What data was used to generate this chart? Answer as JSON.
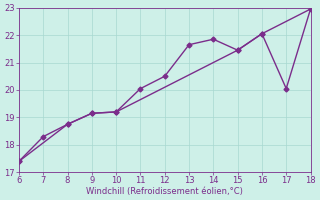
{
  "xlabel": "Windchill (Refroidissement éolien,°C)",
  "xlim": [
    6,
    18
  ],
  "ylim": [
    17,
    23
  ],
  "xticks": [
    6,
    7,
    8,
    9,
    10,
    11,
    12,
    13,
    14,
    15,
    16,
    17,
    18
  ],
  "yticks": [
    17,
    18,
    19,
    20,
    21,
    22,
    23
  ],
  "line1_x": [
    6,
    7,
    8,
    9,
    10,
    11,
    12,
    13,
    14,
    15,
    16,
    17,
    18
  ],
  "line1_y": [
    17.4,
    18.3,
    18.75,
    19.15,
    19.2,
    20.05,
    20.5,
    21.65,
    21.85,
    21.45,
    22.05,
    20.05,
    22.95
  ],
  "line2_x": [
    6,
    8,
    9,
    10,
    15,
    16,
    18
  ],
  "line2_y": [
    17.4,
    18.75,
    19.15,
    19.2,
    21.45,
    22.05,
    22.95
  ],
  "color": "#7B2D8B",
  "bg_color": "#cef0e8",
  "grid_color": "#a8d8d0",
  "marker": "D",
  "markersize": 2.5,
  "linewidth": 1.0,
  "tick_fontsize": 6,
  "xlabel_fontsize": 6
}
